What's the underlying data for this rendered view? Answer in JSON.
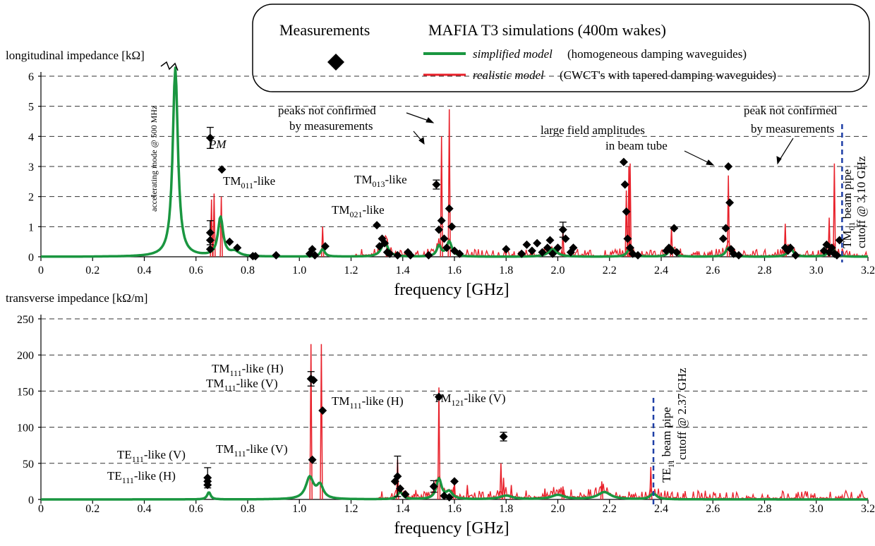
{
  "legend": {
    "measurements_label": "Measurements",
    "simulations_title": "MAFIA T3 simulations (400m wakes)",
    "simplified_italic": "simplified model",
    "simplified_rest": " (homogeneous damping waveguides)",
    "realistic_italic": "realistic model",
    "realistic_rest": " (CWCT's with tapered damping waveguides)"
  },
  "colors": {
    "simplified": "#1a9640",
    "realistic": "#e8202a",
    "marker": "#000000",
    "cutoff": "#1f3fa6"
  },
  "chart_data": [
    {
      "type": "line",
      "name": "longitudinal",
      "ylabel": "longitudinal impedance [kΩ]",
      "xlabel": "frequency [GHz]",
      "xlim": [
        0,
        3.2
      ],
      "ylim": [
        0,
        6
      ],
      "xticks": [
        "0",
        "0.2",
        "0.4",
        "0.6",
        "0.8",
        "1.0",
        "1.2",
        "1.4",
        "1.6",
        "1.8",
        "2.0",
        "2.2",
        "2.4",
        "2.6",
        "2.8",
        "3.0",
        "3.2"
      ],
      "yticks": [
        "0",
        "1",
        "2",
        "3",
        "4",
        "5",
        "6"
      ],
      "grid": "horizontal dashed",
      "simplified_resonances": [
        {
          "f": 0.52,
          "a": 6.3,
          "w": 0.012
        },
        {
          "f": 0.695,
          "a": 1.3,
          "w": 0.012
        },
        {
          "f": 0.75,
          "a": 0.15,
          "w": 0.02
        },
        {
          "f": 1.09,
          "a": 0.25,
          "w": 0.01
        },
        {
          "f": 1.33,
          "a": 0.5,
          "w": 0.015
        },
        {
          "f": 1.54,
          "a": 0.35,
          "w": 0.01
        },
        {
          "f": 1.58,
          "a": 0.5,
          "w": 0.012
        },
        {
          "f": 1.98,
          "a": 0.25,
          "w": 0.02
        },
        {
          "f": 2.28,
          "a": 0.3,
          "w": 0.012
        },
        {
          "f": 2.44,
          "a": 0.3,
          "w": 0.012
        },
        {
          "f": 2.66,
          "a": 0.3,
          "w": 0.012
        },
        {
          "f": 2.9,
          "a": 0.3,
          "w": 0.012
        },
        {
          "f": 3.06,
          "a": 0.35,
          "w": 0.012
        }
      ],
      "realistic_peaks": [
        {
          "f": 0.66,
          "a": 1.9
        },
        {
          "f": 0.67,
          "a": 2.1
        },
        {
          "f": 0.698,
          "a": 2.0
        },
        {
          "f": 1.09,
          "a": 1.0
        },
        {
          "f": 1.55,
          "a": 4.0
        },
        {
          "f": 1.58,
          "a": 4.9
        },
        {
          "f": 2.275,
          "a": 3.0
        },
        {
          "f": 2.28,
          "a": 3.1
        },
        {
          "f": 2.265,
          "a": 2.2
        },
        {
          "f": 2.44,
          "a": 1.0
        },
        {
          "f": 2.66,
          "a": 2.7
        },
        {
          "f": 2.88,
          "a": 1.1
        },
        {
          "f": 3.07,
          "a": 3.1
        },
        {
          "f": 3.05,
          "a": 1.3
        },
        {
          "f": 2.02,
          "a": 0.9
        },
        {
          "f": 1.34,
          "a": 0.6
        }
      ],
      "measurements": [
        {
          "x": 0.655,
          "y": 3.95,
          "err": 0.35
        },
        {
          "x": 0.655,
          "y": 0.8,
          "err": 0.4
        },
        {
          "x": 0.655,
          "y": 0.55
        },
        {
          "x": 0.655,
          "y": 0.25
        },
        {
          "x": 0.7,
          "y": 2.9
        },
        {
          "x": 0.73,
          "y": 0.5
        },
        {
          "x": 0.76,
          "y": 0.3
        },
        {
          "x": 0.82,
          "y": 0.02
        },
        {
          "x": 0.83,
          "y": 0.02
        },
        {
          "x": 0.91,
          "y": 0.05
        },
        {
          "x": 1.04,
          "y": 0.1
        },
        {
          "x": 1.05,
          "y": 0.25
        },
        {
          "x": 1.06,
          "y": 0.05
        },
        {
          "x": 1.1,
          "y": 0.35
        },
        {
          "x": 1.3,
          "y": 1.05
        },
        {
          "x": 1.31,
          "y": 0.35
        },
        {
          "x": 1.32,
          "y": 0.6
        },
        {
          "x": 1.33,
          "y": 0.45
        },
        {
          "x": 1.34,
          "y": 0.15
        },
        {
          "x": 1.35,
          "y": 0.1
        },
        {
          "x": 1.38,
          "y": 0.05
        },
        {
          "x": 1.42,
          "y": 0.15
        },
        {
          "x": 1.43,
          "y": 0.05
        },
        {
          "x": 1.5,
          "y": 0.05
        },
        {
          "x": 1.53,
          "y": 2.4,
          "err": 0.15
        },
        {
          "x": 1.54,
          "y": 0.9
        },
        {
          "x": 1.55,
          "y": 1.2
        },
        {
          "x": 1.56,
          "y": 0.6
        },
        {
          "x": 1.57,
          "y": 0.3
        },
        {
          "x": 1.58,
          "y": 1.6
        },
        {
          "x": 1.59,
          "y": 1.0
        },
        {
          "x": 1.6,
          "y": 0.2
        },
        {
          "x": 1.62,
          "y": 0.1
        },
        {
          "x": 1.8,
          "y": 0.25
        },
        {
          "x": 1.86,
          "y": 0.1
        },
        {
          "x": 1.88,
          "y": 0.4
        },
        {
          "x": 1.9,
          "y": 0.2
        },
        {
          "x": 1.92,
          "y": 0.45
        },
        {
          "x": 1.94,
          "y": 0.15
        },
        {
          "x": 1.96,
          "y": 0.3
        },
        {
          "x": 1.97,
          "y": 0.55
        },
        {
          "x": 1.98,
          "y": 0.1
        },
        {
          "x": 2.0,
          "y": 0.3
        },
        {
          "x": 2.02,
          "y": 0.9,
          "err": 0.25
        },
        {
          "x": 2.03,
          "y": 0.6
        },
        {
          "x": 2.05,
          "y": 0.15
        },
        {
          "x": 2.06,
          "y": 0.3
        },
        {
          "x": 2.255,
          "y": 3.15
        },
        {
          "x": 2.26,
          "y": 2.4
        },
        {
          "x": 2.265,
          "y": 1.5
        },
        {
          "x": 2.27,
          "y": 0.6
        },
        {
          "x": 2.28,
          "y": 0.3
        },
        {
          "x": 2.29,
          "y": 0.1
        },
        {
          "x": 2.31,
          "y": 0.05
        },
        {
          "x": 2.42,
          "y": 0.2
        },
        {
          "x": 2.43,
          "y": 0.3
        },
        {
          "x": 2.44,
          "y": 0.2
        },
        {
          "x": 2.45,
          "y": 0.95
        },
        {
          "x": 2.46,
          "y": 0.15
        },
        {
          "x": 2.64,
          "y": 0.6
        },
        {
          "x": 2.65,
          "y": 0.95
        },
        {
          "x": 2.66,
          "y": 3.0
        },
        {
          "x": 2.665,
          "y": 1.8
        },
        {
          "x": 2.67,
          "y": 0.25
        },
        {
          "x": 2.68,
          "y": 0.1
        },
        {
          "x": 2.7,
          "y": 0.05
        },
        {
          "x": 2.88,
          "y": 0.3
        },
        {
          "x": 2.89,
          "y": 0.2
        },
        {
          "x": 2.9,
          "y": 0.3
        },
        {
          "x": 2.92,
          "y": 0.05
        },
        {
          "x": 3.03,
          "y": 0.2
        },
        {
          "x": 3.04,
          "y": 0.4
        },
        {
          "x": 3.05,
          "y": 0.15
        },
        {
          "x": 3.06,
          "y": 0.3
        },
        {
          "x": 3.07,
          "y": 0.1
        },
        {
          "x": 3.08,
          "y": 0.05
        },
        {
          "x": 3.09,
          "y": 0.55
        }
      ],
      "cutoff_x": 3.1,
      "annotations": {
        "accel": "accelerating mode @ 500 MHz",
        "pm": "PM",
        "tm011": [
          "TM",
          "011",
          "-like"
        ],
        "tm013": [
          "TM",
          "013",
          "-like"
        ],
        "tm021": [
          "TM",
          "021",
          "-like"
        ],
        "peaks_not_confirmed_1": "peaks not confirmed",
        "peaks_not_confirmed_2": "by measurements",
        "large_field_1": "large field amplitudes",
        "large_field_2": "in beam tube",
        "peak_not_confirmed_1": "peak not confirmed",
        "peak_not_confirmed_2": "by measurements",
        "cutoff_1": [
          "TM",
          "01",
          " beam",
          "pipe"
        ],
        "cutoff_2": "cutoff @ 3.10 GHz"
      }
    },
    {
      "type": "line",
      "name": "transverse",
      "ylabel": "transverse impedance [kΩ/m]",
      "xlabel": "frequency [GHz]",
      "xlim": [
        0,
        3.2
      ],
      "ylim": [
        0,
        250
      ],
      "xticks": [
        "0",
        "0.2",
        "0.4",
        "0.6",
        "0.8",
        "1.0",
        "1.2",
        "1.4",
        "1.6",
        "1.8",
        "2.0",
        "2.2",
        "2.4",
        "2.6",
        "2.8",
        "3.0",
        "3.2"
      ],
      "yticks": [
        "0",
        "50",
        "100",
        "150",
        "200",
        "250"
      ],
      "grid": "horizontal dashed",
      "simplified_resonances": [
        {
          "f": 0.65,
          "a": 10,
          "w": 0.008
        },
        {
          "f": 1.04,
          "a": 30,
          "w": 0.018
        },
        {
          "f": 1.08,
          "a": 18,
          "w": 0.015
        },
        {
          "f": 1.39,
          "a": 10,
          "w": 0.012
        },
        {
          "f": 1.54,
          "a": 28,
          "w": 0.012
        },
        {
          "f": 1.58,
          "a": 10,
          "w": 0.015
        },
        {
          "f": 1.8,
          "a": 5,
          "w": 0.03
        },
        {
          "f": 2.0,
          "a": 6,
          "w": 0.03
        },
        {
          "f": 2.18,
          "a": 10,
          "w": 0.03
        },
        {
          "f": 2.37,
          "a": 8,
          "w": 0.015
        }
      ],
      "realistic_peaks": [
        {
          "f": 1.045,
          "a": 215
        },
        {
          "f": 1.085,
          "a": 215
        },
        {
          "f": 1.38,
          "a": 55
        },
        {
          "f": 1.54,
          "a": 155
        },
        {
          "f": 1.6,
          "a": 25
        },
        {
          "f": 1.78,
          "a": 50
        },
        {
          "f": 1.79,
          "a": 30
        },
        {
          "f": 1.82,
          "a": 20
        },
        {
          "f": 2.17,
          "a": 25
        },
        {
          "f": 2.36,
          "a": 45
        },
        {
          "f": 1.65,
          "a": 20
        },
        {
          "f": 1.95,
          "a": 15
        },
        {
          "f": 2.02,
          "a": 18
        }
      ],
      "measurements": [
        {
          "x": 0.645,
          "y": 30,
          "err": 14
        },
        {
          "x": 0.645,
          "y": 20
        },
        {
          "x": 0.645,
          "y": 25
        },
        {
          "x": 1.045,
          "y": 167,
          "err": 10
        },
        {
          "x": 1.055,
          "y": 165
        },
        {
          "x": 1.05,
          "y": 55
        },
        {
          "x": 1.09,
          "y": 123
        },
        {
          "x": 1.37,
          "y": 25
        },
        {
          "x": 1.38,
          "y": 32,
          "err": 28
        },
        {
          "x": 1.39,
          "y": 15
        },
        {
          "x": 1.41,
          "y": 7
        },
        {
          "x": 1.52,
          "y": 18,
          "err": 8
        },
        {
          "x": 1.54,
          "y": 142
        },
        {
          "x": 1.56,
          "y": 5
        },
        {
          "x": 1.58,
          "y": 3
        },
        {
          "x": 1.6,
          "y": 25
        },
        {
          "x": 1.79,
          "y": 87,
          "err": 6
        }
      ],
      "cutoff_x": 2.37,
      "annotations": {
        "tm111_h1": [
          "TM",
          "111",
          "-like (H)"
        ],
        "tm111_v1": [
          "TM",
          "111",
          "-like (V)"
        ],
        "tm111_h2": [
          "TM",
          "111",
          "-like (H)"
        ],
        "tm121_v": [
          "TM",
          "121",
          "-like (V)"
        ],
        "tm111_v2": [
          "TM",
          "111",
          "-like (V)"
        ],
        "te111_v": [
          "TE",
          "111",
          "-like (V)"
        ],
        "te111_h": [
          "TE",
          "111",
          "-like (H)"
        ],
        "cutoff_1": [
          "TE",
          "11",
          " beam pipe"
        ],
        "cutoff_2": "cutoff @ 2.37 GHz"
      }
    }
  ]
}
